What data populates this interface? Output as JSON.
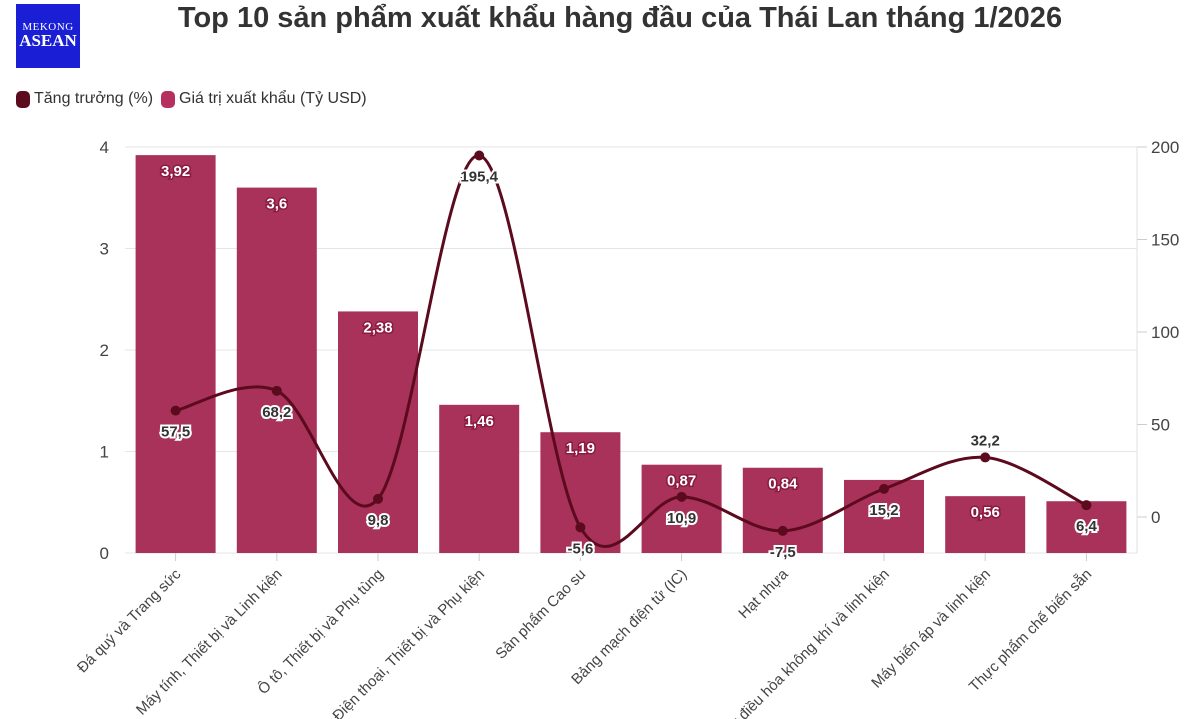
{
  "logo": {
    "line1": "MEKONG",
    "line2": "ASEAN"
  },
  "title": "Top 10 sản phẩm xuất khẩu hàng đầu của Thái Lan tháng 1/2026",
  "chart_data": {
    "type": "bar+line",
    "title": "Top 10 sản phẩm xuất khẩu hàng đầu của Thái Lan tháng 1/2026",
    "categories": [
      "Đá quý và Trang sức",
      "Máy tính, Thiết bị và Linh kiện",
      "Ô tô, Thiết bị và Phụ tùng",
      "Điện thoại, Thiết bị và Phụ kiện",
      "Sản phẩm Cao su",
      "Bảng mạch điện tử (IC)",
      "Hạt nhựa",
      "Máy điều hòa không khí và linh kiện",
      "Máy biến áp và linh kiện",
      "Thực phẩm chế biến sẵn"
    ],
    "series": [
      {
        "name": "Tăng trưởng (%)",
        "type": "line",
        "axis": "right",
        "color": "#5c0a1e",
        "values": [
          57.5,
          68.2,
          9.8,
          195.4,
          -5.6,
          10.9,
          -7.5,
          15.2,
          32.2,
          6.4
        ],
        "labels": [
          "57,5",
          "68,2",
          "9,8",
          "195,4",
          "-5,6",
          "10,9",
          "-7,5",
          "15,2",
          "32,2",
          "6,4"
        ]
      },
      {
        "name": "Giá trị xuất khẩu (Tỷ USD)",
        "type": "bar",
        "axis": "left",
        "color": "#a8325a",
        "values": [
          3.92,
          3.6,
          2.38,
          1.46,
          1.19,
          0.87,
          0.84,
          0.72,
          0.56,
          0.51
        ],
        "labels": [
          "3,92",
          "3,6",
          "2,38",
          "1,46",
          "1,19",
          "0,87",
          "0,84",
          "",
          "0,56",
          ""
        ]
      }
    ],
    "ylim": [
      0,
      4
    ],
    "yticks": [
      "0",
      "1",
      "2",
      "3",
      "4"
    ],
    "y2lim": [
      -20,
      200
    ],
    "y2ticks": [
      "0",
      "50",
      "100",
      "150",
      "200"
    ],
    "grid": true,
    "legend": "top-left"
  }
}
